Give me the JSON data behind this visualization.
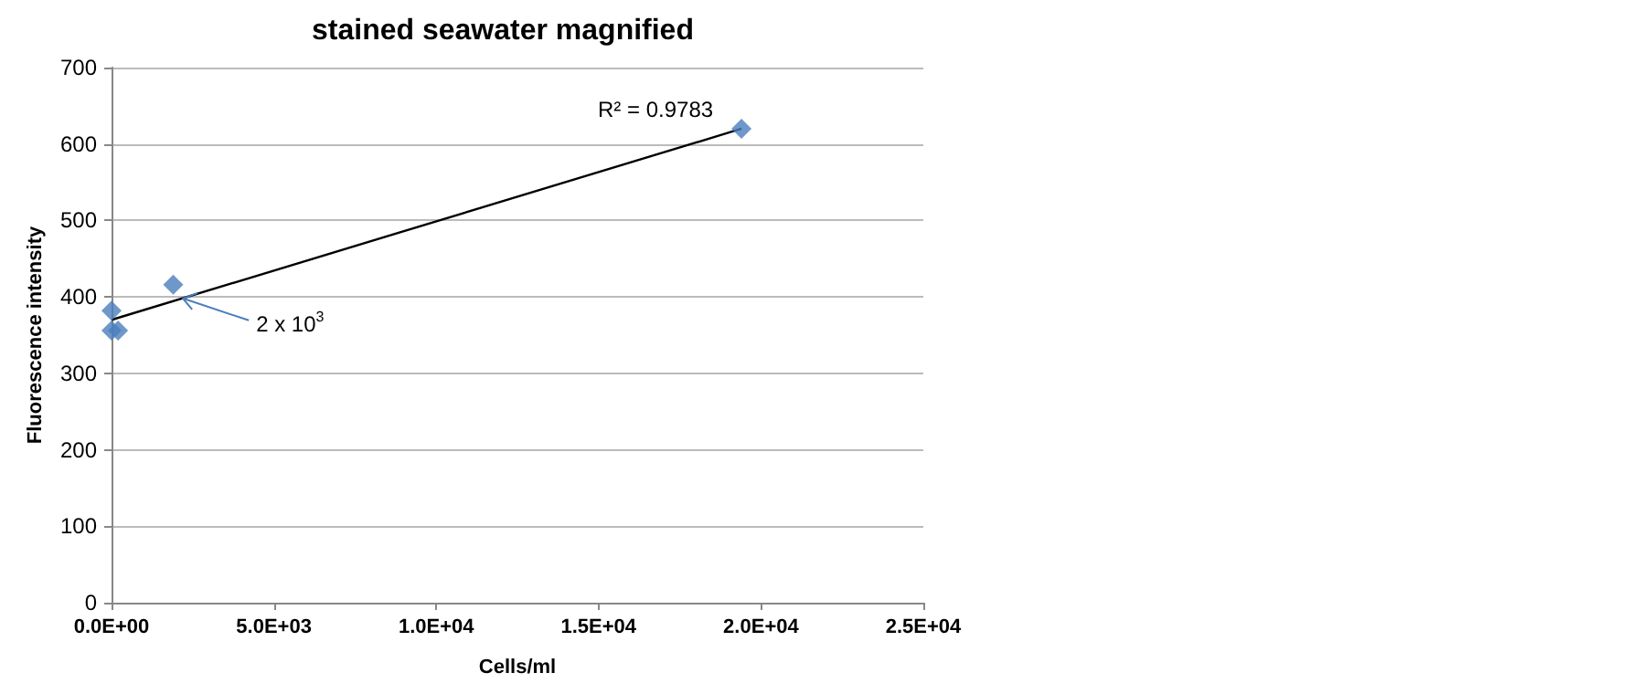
{
  "chart_data": {
    "type": "scatter",
    "title": "stained seawater magnified",
    "xlabel": "Cells/ml",
    "ylabel": "Fluorescence intensity",
    "x": [
      0,
      200,
      0,
      1900,
      19400
    ],
    "series": [
      {
        "color": "#4a7ebb",
        "marker": "diamond",
        "values": [
          382,
          356,
          356,
          416,
          620
        ]
      },
      {
        "type": "line",
        "color": "#000000",
        "x": [
          0,
          19400
        ],
        "values": [
          370,
          620
        ]
      }
    ],
    "grid": "y",
    "xlim": [
      0,
      25000
    ],
    "xticks": [
      {
        "value": 0,
        "label": "0.0E+00"
      },
      {
        "value": 5000,
        "label": "5.0E+03"
      },
      {
        "value": 10000,
        "label": "1.0E+04"
      },
      {
        "value": 15000,
        "label": "1.5E+04"
      },
      {
        "value": 20000,
        "label": "2.0E+04"
      },
      {
        "value": 25000,
        "label": "2.5E+04"
      }
    ],
    "ylim": [
      0,
      700
    ],
    "yticks": [
      0,
      100,
      200,
      300,
      400,
      500,
      600,
      700
    ],
    "annotations": [
      "R² = 0.9783",
      {
        "text": "2 x 10$^{3}$",
        "x": 2200,
        "y": 398
      }
    ]
  }
}
